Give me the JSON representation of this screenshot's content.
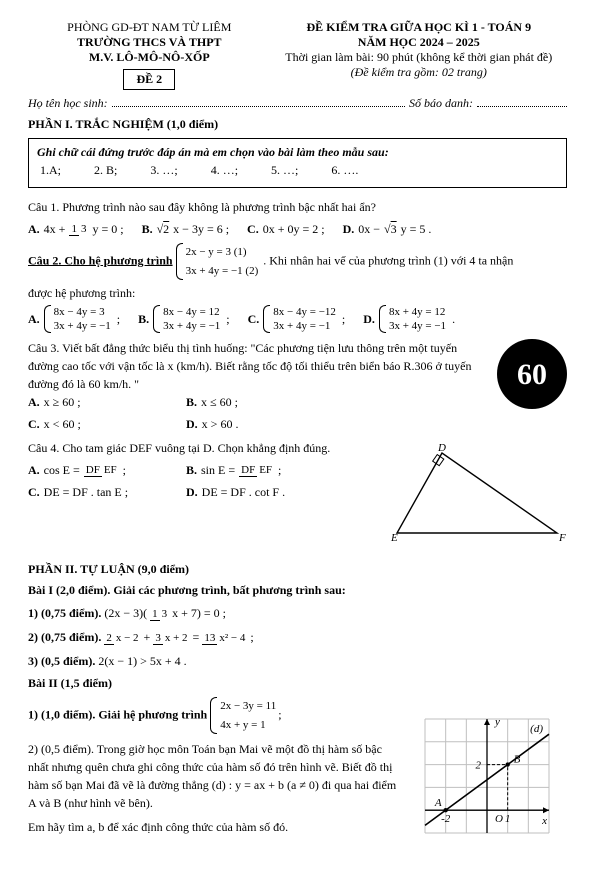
{
  "header": {
    "dept": "PHÒNG GD-ĐT NAM TỪ LIÊM",
    "school1": "TRƯỜNG THCS VÀ THPT",
    "school2": "M.V. LÔ-MÔ-NÔ-XỐP",
    "de": "ĐỀ 2",
    "exam_title": "ĐỀ KIỂM TRA GIỮA HỌC KÌ 1 - TOÁN 9",
    "year": "NĂM HỌC 2024 – 2025",
    "time": "Thời gian làm bài: 90 phút (không kể thời gian phát đề)",
    "pages": "(Đề kiểm tra gồm: 02 trang)",
    "student_label": "Họ tên học sinh:",
    "id_label": "Số báo danh:"
  },
  "p1": {
    "title": "PHẦN I. TRẮC NGHIỆM (1,0 điểm)",
    "box_intro": "Ghi chữ cái đứng trước đáp án mà em chọn vào bài làm theo mẫu sau:",
    "box_items": [
      "1.A;",
      "2. B;",
      "3. …;",
      "4. …;",
      "5. …;",
      "6. …."
    ],
    "q1": {
      "prompt": "Câu 1. Phương trình nào sau đây không là phương trình bậc nhất hai ẩn?",
      "A_pre": "4x +",
      "A_fn": "1",
      "A_fd": "3",
      "A_post": "y = 0 ;",
      "B_pre": "",
      "B_rt": "2",
      "B_post": "x − 3y = 6 ;",
      "C": "0x + 0y = 2 ;",
      "D_pre": "0x −",
      "D_rt": "3",
      "D_post": "y = 5 ."
    },
    "q2": {
      "pre": "Câu 2. Cho hệ phương trình",
      "s1": "2x − y = 3   (1)",
      "s2": "3x + 4y = −1 (2)",
      "mid": ". Khi nhân hai vế của phương trình (1) với 4 ta nhận",
      "lead": "được hệ phương trình:",
      "A1": "8x − 4y = 3",
      "A2": "3x + 4y = −1",
      "B1": "8x − 4y = 12",
      "B2": "3x + 4y = −1",
      "C1": "8x − 4y = −12",
      "C2": "3x + 4y = −1",
      "D1": "8x + 4y = 12",
      "D2": "3x + 4y = −1"
    },
    "q3": {
      "p1": "Câu 3. Viết bất đẳng thức biểu thị tình huống: \"Các phương tiện lưu thông trên một tuyến đường cao tốc với vận tốc là x (km/h). Biết rằng tốc độ tối thiểu trên biển báo R.306 ở tuyến đường đó là 60 km/h. \"",
      "A": "x ≥ 60 ;",
      "B": "x ≤ 60 ;",
      "C": "x < 60 ;",
      "D": "x > 60 .",
      "badge": "60"
    },
    "q4": {
      "prompt": "Câu 4. Cho tam giác DEF vuông tại D. Chọn khẳng định đúng.",
      "A_pre": "cos E =",
      "A_fn": "DF",
      "A_fd": "EF",
      "B_pre": "sin E =",
      "B_fn": "DF",
      "B_fd": "EF",
      "C": "DE = DF . tan E ;",
      "D": "DE = DF . cot F .",
      "tri": {
        "D": "D",
        "E": "E",
        "F": "F",
        "stroke": "#000"
      }
    }
  },
  "p2": {
    "title": "PHẦN II. TỰ LUẬN (9,0 điểm)",
    "b1_title": "Bài I (2,0 điểm). Giải các phương trình, bất phương trình sau:",
    "b1_1_label": "1) (0,75 điểm).",
    "b1_1_pre": "(2x − 3)(",
    "b1_1_fn": "1",
    "b1_1_fd": "3",
    "b1_1_post": "x + 7) = 0 ;",
    "b1_2_label": "2) (0,75 điểm).",
    "b1_2_f1n": "2",
    "b1_2_f1d": "x − 2",
    "b1_2_f2n": "3",
    "b1_2_f2d": "x + 2",
    "b1_2_f3n": "13",
    "b1_2_f3d": "x² − 4",
    "b1_3_label": "3) (0,5 điểm).",
    "b1_3_eq": "2(x − 1) > 5x + 4 .",
    "b2_title": "Bài II (1,5 điểm)",
    "b2_1_label": "1) (1,0 điểm). Giải hệ phương trình",
    "b2_1_s1": "2x − 3y = 11",
    "b2_1_s2": "4x + y = 1",
    "b2_2": "2) (0,5 điểm). Trong giờ học môn Toán bạn Mai vẽ một đồ thị hàm số bậc nhất nhưng quên chưa ghi công thức của hàm số đó trên hình vẽ. Biết đồ thị hàm số bạn Mai đã vẽ là đường thẳng (d) : y = ax + b (a ≠ 0) đi qua hai điểm A và B (như hình vẽ bên).",
    "b2_2_end": "Em hãy tìm a, b để xác định công thức của hàm số đó."
  },
  "chart": {
    "xlim": [
      -3,
      3
    ],
    "ylim": [
      -1,
      4
    ],
    "xticks": [
      -2,
      1
    ],
    "ytick": 2,
    "A": [
      -2,
      0
    ],
    "B": [
      1,
      2
    ],
    "labels": {
      "A": "A",
      "B": "B",
      "x": "x",
      "y": "y",
      "O": "O",
      "d": "(d)"
    },
    "grid_color": "#bfbfbf",
    "axis_color": "#000",
    "line_color": "#000",
    "bg": "#ffffff",
    "fontsize": 11
  }
}
